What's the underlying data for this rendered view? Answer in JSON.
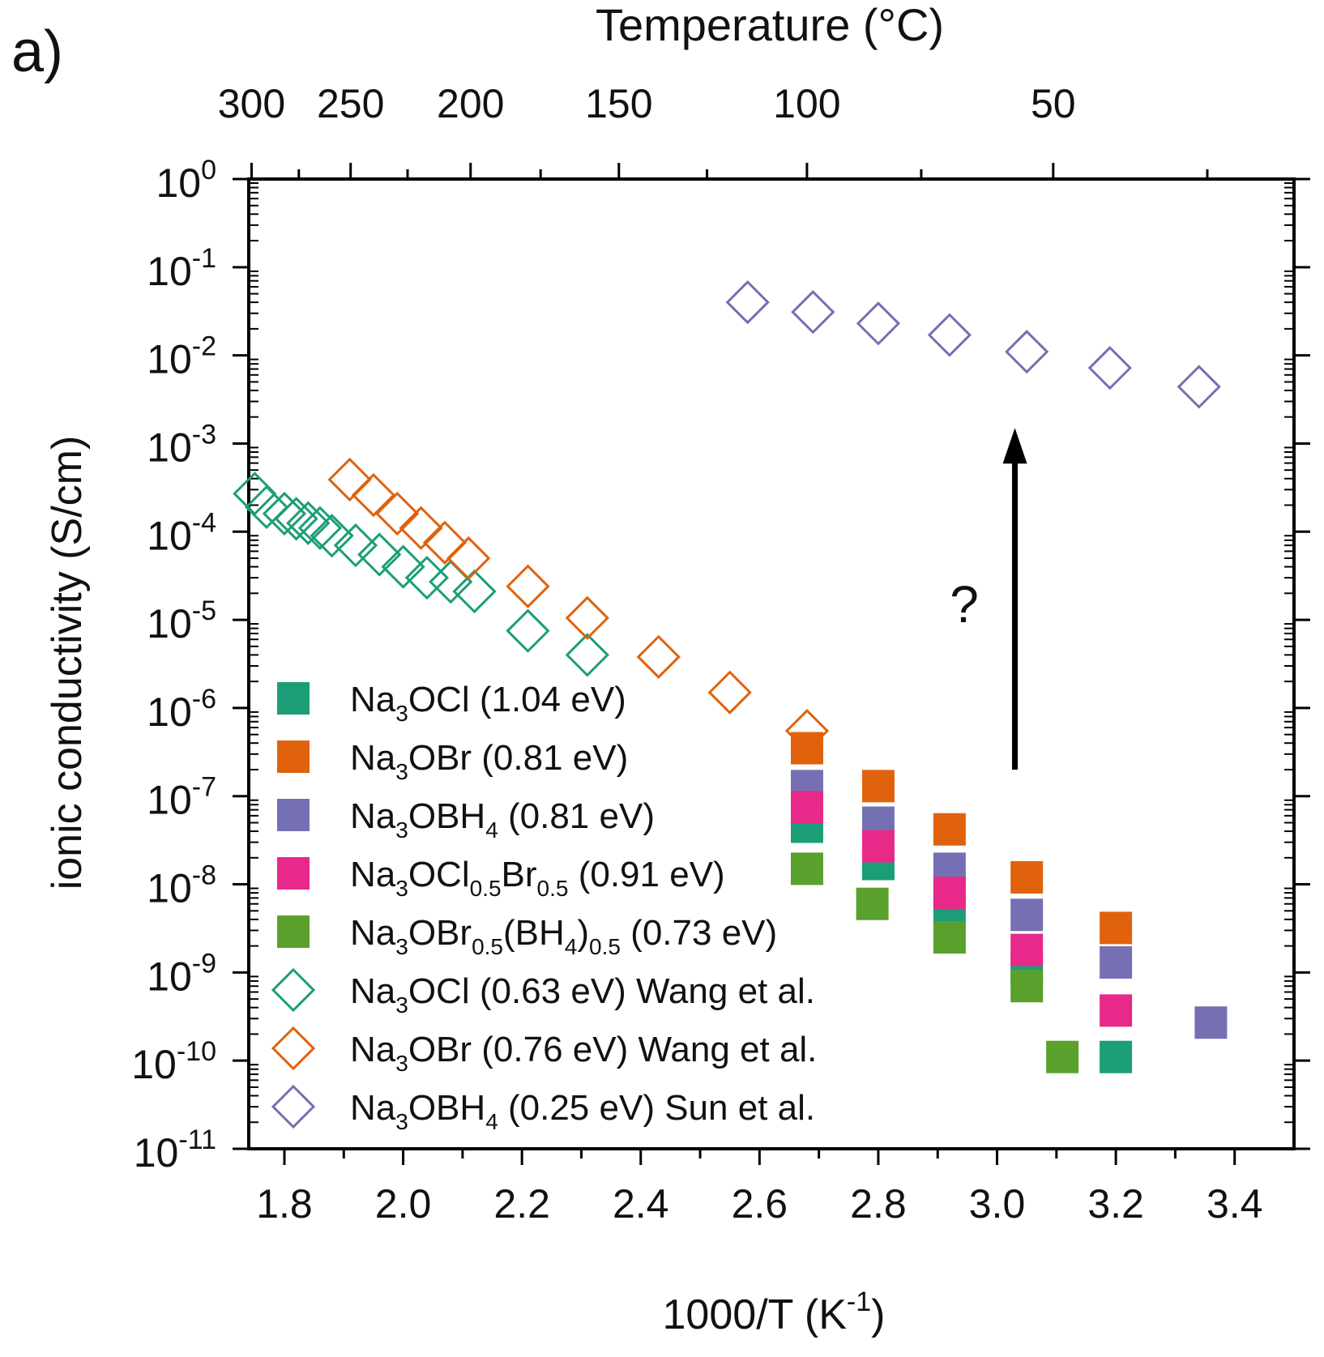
{
  "panel_label": "a)",
  "chart_data": {
    "type": "scatter",
    "title": "",
    "xlabel": "1000/T (K",
    "xlabel_sup": "-1",
    "xlabel_end": ")",
    "ylabel": "ionic conductivity (S/cm)",
    "top_axis_label": "Temperature (°C)",
    "xlim": [
      1.74,
      3.5
    ],
    "ylim_log10": [
      -11,
      0
    ],
    "y_scale": "log",
    "x_ticks": [
      1.8,
      2.0,
      2.2,
      2.4,
      2.6,
      2.8,
      3.0,
      3.2,
      3.4
    ],
    "x_tick_labels": [
      "1.8",
      "2.0",
      "2.2",
      "2.4",
      "2.6",
      "2.8",
      "3.0",
      "3.2",
      "3.4"
    ],
    "y_tick_exponents": [
      "0",
      "-1",
      "-2",
      "-3",
      "-4",
      "-5",
      "-6",
      "-7",
      "-8",
      "-9",
      "-10",
      "-11"
    ],
    "y_tick_base": "10",
    "top_ticks_celsius": [
      300,
      250,
      200,
      150,
      100,
      50
    ],
    "top_tick_labels": [
      "300",
      "250",
      "200",
      "150",
      "100",
      "50"
    ],
    "annotation": "?",
    "arrow": {
      "x": 3.03,
      "y_from": 2e-07,
      "y_to": 0.0015
    },
    "legend_position": "bottom-left",
    "series": [
      {
        "name": "Na3OCl (1.04 eV)",
        "marker": "filled-square",
        "color": "#1b9e77",
        "points": [
          [
            2.68,
            4.5e-08
          ],
          [
            2.8,
            1.7e-08
          ],
          [
            2.92,
            5.5e-09
          ],
          [
            3.05,
            1.1e-09
          ],
          [
            3.2,
            1.1e-10
          ]
        ]
      },
      {
        "name": "Na3OBr (0.81 eV)",
        "marker": "filled-square",
        "color": "#e0620d",
        "points": [
          [
            2.68,
            3.5e-07
          ],
          [
            2.8,
            1.3e-07
          ],
          [
            2.92,
            4.2e-08
          ],
          [
            3.05,
            1.2e-08
          ],
          [
            3.2,
            3.2e-09
          ]
        ]
      },
      {
        "name": "Na3OBH4 (0.81 eV)",
        "marker": "filled-square",
        "color": "#7570b3",
        "points": [
          [
            2.68,
            1.3e-07
          ],
          [
            2.8,
            5e-08
          ],
          [
            2.92,
            1.5e-08
          ],
          [
            3.05,
            4.5e-09
          ],
          [
            3.2,
            1.3e-09
          ],
          [
            3.36,
            2.7e-10
          ]
        ]
      },
      {
        "name": "Na3OCl0.5Br0.5 (0.91 eV)",
        "marker": "filled-square",
        "color": "#e7298a",
        "points": [
          [
            2.68,
            7.5e-08
          ],
          [
            2.8,
            2.7e-08
          ],
          [
            2.92,
            8e-09
          ],
          [
            3.05,
            1.8e-09
          ],
          [
            3.2,
            3.7e-10
          ]
        ]
      },
      {
        "name": "Na3OBr0.5(BH4)0.5 (0.73 eV)",
        "marker": "filled-square",
        "color": "#5aa02c",
        "points": [
          [
            2.68,
            1.5e-08
          ],
          [
            2.79,
            6e-09
          ],
          [
            2.92,
            2.5e-09
          ],
          [
            3.05,
            7e-10
          ],
          [
            3.11,
            1.1e-10
          ]
        ]
      },
      {
        "name": "Na3OCl (0.63 eV) Wang et al.",
        "marker": "open-diamond",
        "color": "#1b9e77",
        "points": [
          [
            1.75,
            0.00027
          ],
          [
            1.77,
            0.00019
          ],
          [
            1.8,
            0.00016
          ],
          [
            1.82,
            0.00014
          ],
          [
            1.84,
            0.000125
          ],
          [
            1.86,
            0.00011
          ],
          [
            1.88,
            9e-05
          ],
          [
            1.92,
            7e-05
          ],
          [
            1.96,
            5.5e-05
          ],
          [
            2.0,
            4e-05
          ],
          [
            2.04,
            3e-05
          ],
          [
            2.08,
            2.7e-05
          ],
          [
            2.12,
            2.1e-05
          ],
          [
            2.21,
            7.5e-06
          ],
          [
            2.31,
            4e-06
          ]
        ]
      },
      {
        "name": "Na3OBr (0.76 eV) Wang et al.",
        "marker": "open-diamond",
        "color": "#e0620d",
        "points": [
          [
            1.91,
            0.00039
          ],
          [
            1.95,
            0.00026
          ],
          [
            1.99,
            0.00016
          ],
          [
            2.03,
            0.00011
          ],
          [
            2.07,
            7.5e-05
          ],
          [
            2.11,
            5e-05
          ],
          [
            2.21,
            2.4e-05
          ],
          [
            2.31,
            1.05e-05
          ],
          [
            2.43,
            3.8e-06
          ],
          [
            2.55,
            1.5e-06
          ],
          [
            2.68,
            5.5e-07
          ]
        ]
      },
      {
        "name": "Na3OBH4 (0.25 eV) Sun et al.",
        "marker": "open-diamond",
        "color": "#7570b3",
        "points": [
          [
            2.58,
            0.04
          ],
          [
            2.69,
            0.031
          ],
          [
            2.8,
            0.023
          ],
          [
            2.92,
            0.017
          ],
          [
            3.05,
            0.011
          ],
          [
            3.19,
            0.0072
          ],
          [
            3.34,
            0.0044
          ]
        ]
      }
    ]
  },
  "legend_entries": [
    {
      "parts": [
        {
          "t": "Na"
        },
        {
          "t": "3",
          "s": "sub"
        },
        {
          "t": "OCl (1.04 eV)"
        }
      ]
    },
    {
      "parts": [
        {
          "t": "Na"
        },
        {
          "t": "3",
          "s": "sub"
        },
        {
          "t": "OBr (0.81 eV)"
        }
      ]
    },
    {
      "parts": [
        {
          "t": "Na"
        },
        {
          "t": "3",
          "s": "sub"
        },
        {
          "t": "OBH"
        },
        {
          "t": "4",
          "s": "sub"
        },
        {
          "t": " (0.81 eV)"
        }
      ]
    },
    {
      "parts": [
        {
          "t": "Na"
        },
        {
          "t": "3",
          "s": "sub"
        },
        {
          "t": "OCl"
        },
        {
          "t": "0.5",
          "s": "sub"
        },
        {
          "t": "Br"
        },
        {
          "t": "0.5",
          "s": "sub"
        },
        {
          "t": " (0.91 eV)"
        }
      ]
    },
    {
      "parts": [
        {
          "t": "Na"
        },
        {
          "t": "3",
          "s": "sub"
        },
        {
          "t": "OBr"
        },
        {
          "t": "0.5",
          "s": "sub"
        },
        {
          "t": "(BH"
        },
        {
          "t": "4",
          "s": "sub"
        },
        {
          "t": ")"
        },
        {
          "t": "0.5",
          "s": "sub"
        },
        {
          "t": " (0.73 eV)"
        }
      ]
    },
    {
      "parts": [
        {
          "t": "Na"
        },
        {
          "t": "3",
          "s": "sub"
        },
        {
          "t": "OCl (0.63 eV) Wang et al."
        }
      ]
    },
    {
      "parts": [
        {
          "t": "Na"
        },
        {
          "t": "3",
          "s": "sub"
        },
        {
          "t": "OBr (0.76 eV) Wang et al."
        }
      ]
    },
    {
      "parts": [
        {
          "t": "Na"
        },
        {
          "t": "3",
          "s": "sub"
        },
        {
          "t": "OBH"
        },
        {
          "t": "4",
          "s": "sub"
        },
        {
          "t": " (0.25 eV) Sun et al."
        }
      ]
    }
  ]
}
